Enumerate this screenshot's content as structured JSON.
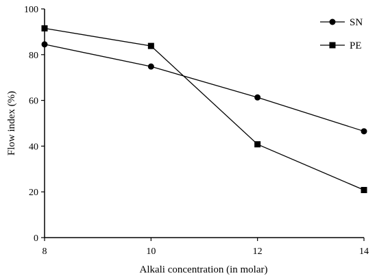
{
  "chart_data": {
    "type": "line",
    "title": "",
    "xlabel": "Alkali concentration (in molar)",
    "ylabel": "Flow index (%)",
    "xlim": [
      8,
      14
    ],
    "ylim": [
      0,
      100
    ],
    "x_ticks": [
      "8",
      "10",
      "12",
      "14"
    ],
    "y_ticks": [
      "0",
      "20",
      "40",
      "60",
      "80",
      "100"
    ],
    "x": [
      8,
      10,
      12,
      14
    ],
    "grid": false,
    "legend_position": "top-right",
    "series": [
      {
        "name": "SN",
        "marker": "circle",
        "values": [
          84.5,
          74.8,
          61.3,
          46.5
        ]
      },
      {
        "name": "PE",
        "marker": "square",
        "values": [
          91.5,
          83.8,
          40.8,
          20.8
        ]
      }
    ]
  }
}
